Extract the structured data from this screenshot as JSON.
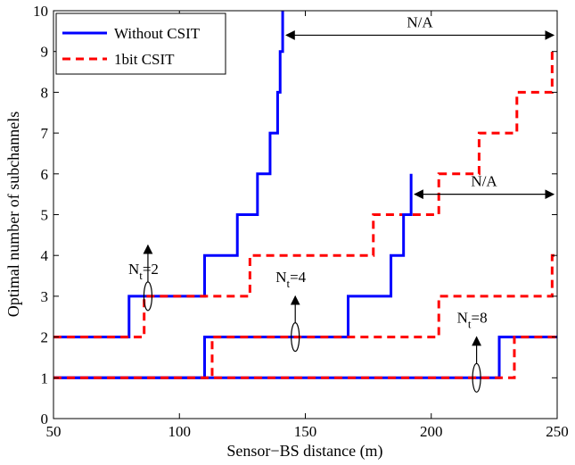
{
  "chart_data": {
    "type": "line",
    "xlabel": "Sensor−BS distance (m)",
    "ylabel": "Optimal number of subchannels",
    "xlim": [
      50,
      250
    ],
    "ylim": [
      0,
      10
    ],
    "xticks": [
      50,
      100,
      150,
      200,
      250
    ],
    "yticks": [
      0,
      1,
      2,
      3,
      4,
      5,
      6,
      7,
      8,
      9,
      10
    ],
    "grid": false,
    "legend_position": "top-left",
    "series": [
      {
        "name": "Without CSIT",
        "color": "#0000ff",
        "dash": "solid",
        "group": "Nt=2",
        "steps": [
          [
            50,
            2
          ],
          [
            80,
            3
          ],
          [
            110,
            4
          ],
          [
            123,
            5
          ],
          [
            131,
            6
          ],
          [
            136,
            7
          ],
          [
            139,
            8
          ],
          [
            140,
            9
          ],
          [
            141,
            10
          ]
        ]
      },
      {
        "name": "1bit CSIT",
        "color": "#ff0000",
        "dash": "dashed",
        "group": "Nt=2",
        "steps": [
          [
            50,
            2
          ],
          [
            86,
            3
          ],
          [
            128,
            4
          ],
          [
            177,
            5
          ],
          [
            203,
            6
          ],
          [
            219,
            7
          ],
          [
            234,
            8
          ],
          [
            248,
            9
          ]
        ]
      },
      {
        "name": "Without CSIT",
        "color": "#0000ff",
        "dash": "solid",
        "group": "Nt=4",
        "steps": [
          [
            50,
            1
          ],
          [
            110,
            2
          ],
          [
            167,
            3
          ],
          [
            184,
            4
          ],
          [
            189,
            5
          ],
          [
            192,
            6
          ]
        ]
      },
      {
        "name": "1bit CSIT",
        "color": "#ff0000",
        "dash": "dashed",
        "group": "Nt=4",
        "steps": [
          [
            50,
            1
          ],
          [
            113,
            2
          ],
          [
            203,
            3
          ],
          [
            248,
            4
          ]
        ]
      },
      {
        "name": "Without CSIT",
        "color": "#0000ff",
        "dash": "solid",
        "group": "Nt=8",
        "steps": [
          [
            50,
            1
          ],
          [
            227,
            2
          ],
          [
            250,
            2
          ]
        ]
      },
      {
        "name": "1bit CSIT",
        "color": "#ff0000",
        "dash": "dashed",
        "group": "Nt=8",
        "steps": [
          [
            50,
            1
          ],
          [
            233,
            2
          ],
          [
            250,
            2
          ]
        ]
      }
    ],
    "annotations": [
      {
        "base": "N",
        "sub": "t",
        "suffix": "=2",
        "x": 87.5,
        "y": 3.55,
        "ellipse_y": 3,
        "arrow_to": 4.25
      },
      {
        "base": "N",
        "sub": "t",
        "suffix": "=4",
        "x": 146,
        "y": 3.35,
        "ellipse_y": 2,
        "arrow_to": 3.0
      },
      {
        "base": "N",
        "sub": "t",
        "suffix": "=8",
        "x": 218,
        "y": 2.35,
        "ellipse_y": 1,
        "arrow_to": 2.0
      }
    ],
    "na_markers": [
      {
        "label": "N/A",
        "x_from": 141,
        "x_to": 250,
        "y": 9.4
      },
      {
        "label": "N/A",
        "x_from": 192,
        "x_to": 250,
        "y": 5.5
      }
    ]
  }
}
